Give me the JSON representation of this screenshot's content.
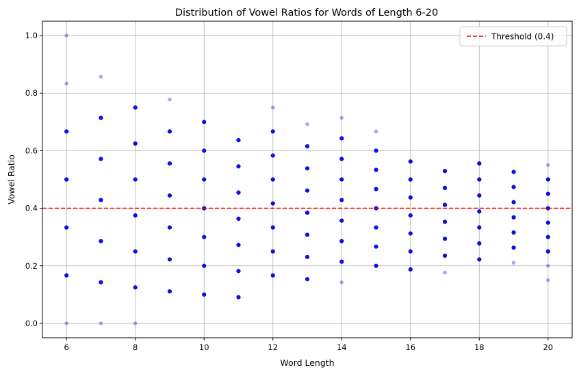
{
  "chart_data": {
    "type": "scatter",
    "title": "Distribution of Vowel Ratios for Words of Length 6-20",
    "xlabel": "Word Length",
    "ylabel": "Vowel Ratio",
    "xlim": [
      5.3,
      20.7
    ],
    "ylim": [
      -0.05,
      1.05
    ],
    "xticks": [
      6,
      8,
      10,
      12,
      14,
      16,
      18,
      20
    ],
    "xtick_labels": [
      "6",
      "8",
      "10",
      "12",
      "14",
      "16",
      "18",
      "20"
    ],
    "yticks": [
      0.0,
      0.2,
      0.4,
      0.6,
      0.8,
      1.0
    ],
    "ytick_labels": [
      "0.0",
      "0.2",
      "0.4",
      "0.6",
      "0.8",
      "1.0"
    ],
    "grid": true,
    "legend_position": "top-right",
    "point_color": "#0000ff",
    "series": [
      {
        "points_strong": [
          [
            6,
            0.1667
          ],
          [
            6,
            0.3333
          ],
          [
            6,
            0.5
          ],
          [
            6,
            0.6667
          ],
          [
            7,
            0.1429
          ],
          [
            7,
            0.2857
          ],
          [
            7,
            0.4286
          ],
          [
            7,
            0.5714
          ],
          [
            7,
            0.7143
          ],
          [
            8,
            0.125
          ],
          [
            8,
            0.25
          ],
          [
            8,
            0.375
          ],
          [
            8,
            0.5
          ],
          [
            8,
            0.625
          ],
          [
            8,
            0.75
          ],
          [
            9,
            0.1111
          ],
          [
            9,
            0.2222
          ],
          [
            9,
            0.3333
          ],
          [
            9,
            0.4444
          ],
          [
            9,
            0.5556
          ],
          [
            9,
            0.6667
          ],
          [
            10,
            0.1
          ],
          [
            10,
            0.2
          ],
          [
            10,
            0.3
          ],
          [
            10,
            0.4
          ],
          [
            10,
            0.5
          ],
          [
            10,
            0.6
          ],
          [
            10,
            0.7
          ],
          [
            11,
            0.0909
          ],
          [
            11,
            0.1818
          ],
          [
            11,
            0.2727
          ],
          [
            11,
            0.3636
          ],
          [
            11,
            0.4545
          ],
          [
            11,
            0.5455
          ],
          [
            11,
            0.6364
          ],
          [
            12,
            0.1667
          ],
          [
            12,
            0.25
          ],
          [
            12,
            0.3333
          ],
          [
            12,
            0.4167
          ],
          [
            12,
            0.5
          ],
          [
            12,
            0.5833
          ],
          [
            12,
            0.6667
          ],
          [
            13,
            0.1538
          ],
          [
            13,
            0.2308
          ],
          [
            13,
            0.3077
          ],
          [
            13,
            0.3846
          ],
          [
            13,
            0.4615
          ],
          [
            13,
            0.5385
          ],
          [
            13,
            0.6154
          ],
          [
            14,
            0.2143
          ],
          [
            14,
            0.2857
          ],
          [
            14,
            0.3571
          ],
          [
            14,
            0.4286
          ],
          [
            14,
            0.5
          ],
          [
            14,
            0.5714
          ],
          [
            14,
            0.6429
          ],
          [
            15,
            0.2
          ],
          [
            15,
            0.2667
          ],
          [
            15,
            0.3333
          ],
          [
            15,
            0.4
          ],
          [
            15,
            0.4667
          ],
          [
            15,
            0.5333
          ],
          [
            15,
            0.6
          ],
          [
            16,
            0.1875
          ],
          [
            16,
            0.25
          ],
          [
            16,
            0.3125
          ],
          [
            16,
            0.375
          ],
          [
            16,
            0.4375
          ],
          [
            16,
            0.5
          ],
          [
            16,
            0.5625
          ],
          [
            17,
            0.2353
          ],
          [
            17,
            0.2941
          ],
          [
            17,
            0.3529
          ],
          [
            17,
            0.4118
          ],
          [
            17,
            0.4706
          ],
          [
            17,
            0.5294
          ],
          [
            18,
            0.2222
          ],
          [
            18,
            0.2778
          ],
          [
            18,
            0.3333
          ],
          [
            18,
            0.3889
          ],
          [
            18,
            0.4444
          ],
          [
            18,
            0.5
          ],
          [
            18,
            0.5556
          ],
          [
            19,
            0.2632
          ],
          [
            19,
            0.3158
          ],
          [
            19,
            0.3684
          ],
          [
            19,
            0.4211
          ],
          [
            19,
            0.4737
          ],
          [
            19,
            0.5263
          ],
          [
            20,
            0.25
          ],
          [
            20,
            0.3
          ],
          [
            20,
            0.35
          ],
          [
            20,
            0.4
          ],
          [
            20,
            0.45
          ],
          [
            20,
            0.5
          ]
        ],
        "points_faint": [
          [
            6,
            0.0
          ],
          [
            6,
            0.8333
          ],
          [
            6,
            1.0
          ],
          [
            7,
            0.0
          ],
          [
            7,
            0.8571
          ],
          [
            8,
            0.0
          ],
          [
            9,
            0.7778
          ],
          [
            12,
            0.75
          ],
          [
            13,
            0.6923
          ],
          [
            14,
            0.1429
          ],
          [
            14,
            0.7143
          ],
          [
            15,
            0.6667
          ],
          [
            17,
            0.1765
          ],
          [
            19,
            0.2105
          ],
          [
            20,
            0.15
          ],
          [
            20,
            0.2
          ],
          [
            20,
            0.55
          ]
        ]
      }
    ],
    "threshold": {
      "value": 0.4,
      "label": "Threshold (0.4)",
      "color": "#ff0000"
    }
  }
}
